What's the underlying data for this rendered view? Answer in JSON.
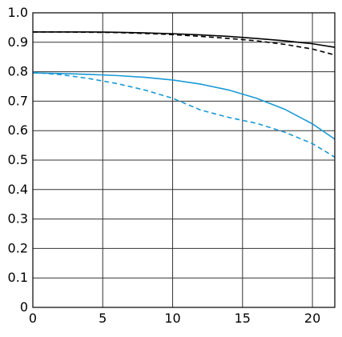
{
  "chart_data": {
    "type": "line",
    "xlim": [
      0,
      21.6
    ],
    "ylim": [
      0,
      1.0
    ],
    "grid": true,
    "xticks": [
      {
        "value": 0,
        "label": "0"
      },
      {
        "value": 5,
        "label": "5"
      },
      {
        "value": 10,
        "label": "10"
      },
      {
        "value": 15,
        "label": "15"
      },
      {
        "value": 20,
        "label": "20"
      }
    ],
    "yticks": [
      {
        "value": 0,
        "label": "0"
      },
      {
        "value": 0.1,
        "label": "0.1"
      },
      {
        "value": 0.2,
        "label": "0.2"
      },
      {
        "value": 0.3,
        "label": "0.3"
      },
      {
        "value": 0.4,
        "label": "0.4"
      },
      {
        "value": 0.5,
        "label": "0.5"
      },
      {
        "value": 0.6,
        "label": "0.6"
      },
      {
        "value": 0.7,
        "label": "0.7"
      },
      {
        "value": 0.8,
        "label": "0.8"
      },
      {
        "value": 0.9,
        "label": "0.9"
      },
      {
        "value": 1.0,
        "label": "1.0"
      }
    ],
    "series": [
      {
        "color": "#000000",
        "style": "solid",
        "x": [
          0,
          2,
          4,
          6,
          8,
          10,
          12,
          14,
          16,
          18,
          20,
          21.6
        ],
        "y": [
          0.935,
          0.935,
          0.935,
          0.934,
          0.932,
          0.929,
          0.925,
          0.92,
          0.913,
          0.905,
          0.895,
          0.883
        ]
      },
      {
        "color": "#000000",
        "style": "dashed",
        "x": [
          0,
          2,
          4,
          6,
          8,
          10,
          12,
          14,
          16,
          18,
          20,
          21.6
        ],
        "y": [
          0.935,
          0.935,
          0.934,
          0.933,
          0.93,
          0.926,
          0.92,
          0.913,
          0.905,
          0.893,
          0.877,
          0.857
        ]
      },
      {
        "color": "#1a9ad6",
        "style": "solid",
        "x": [
          0,
          2,
          4,
          6,
          8,
          10,
          12,
          14,
          16,
          18,
          20,
          21.6
        ],
        "y": [
          0.796,
          0.794,
          0.791,
          0.787,
          0.781,
          0.772,
          0.758,
          0.738,
          0.71,
          0.673,
          0.623,
          0.571
        ]
      },
      {
        "color": "#1a9ad6",
        "style": "dashed",
        "x": [
          0,
          2,
          4,
          6,
          8,
          10,
          12,
          14,
          16,
          18,
          20,
          21.6
        ],
        "y": [
          0.798,
          0.79,
          0.777,
          0.76,
          0.738,
          0.71,
          0.67,
          0.645,
          0.625,
          0.595,
          0.556,
          0.51
        ]
      }
    ]
  }
}
